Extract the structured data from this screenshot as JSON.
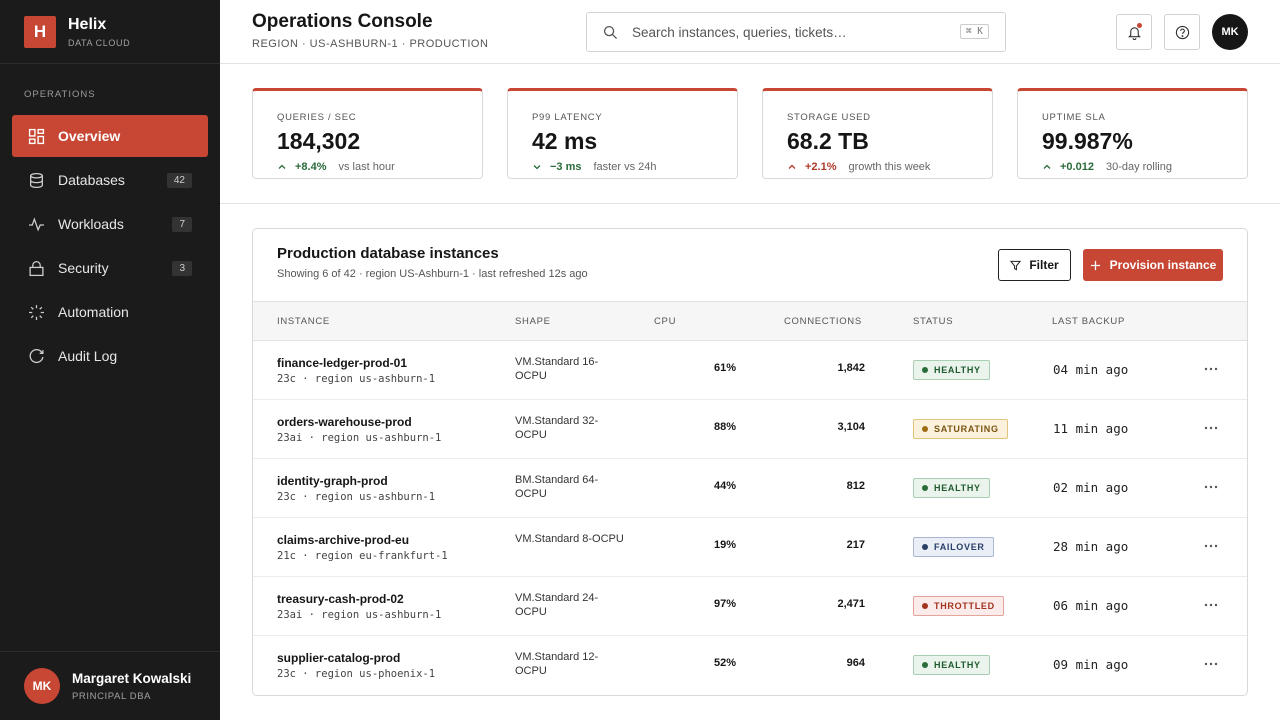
{
  "brand": {
    "logo_letter": "H",
    "name": "Helix",
    "subtitle": "DATA CLOUD"
  },
  "sidebar": {
    "section_label": "OPERATIONS",
    "items": [
      {
        "label": "Overview",
        "icon": "grid-icon",
        "badge": "",
        "active": true
      },
      {
        "label": "Databases",
        "icon": "database-icon",
        "badge": "42"
      },
      {
        "label": "Workloads",
        "icon": "pulse-icon",
        "badge": "7"
      },
      {
        "label": "Security",
        "icon": "lock-icon",
        "badge": "3"
      },
      {
        "label": "Automation",
        "icon": "spark-icon",
        "badge": ""
      },
      {
        "label": "Audit Log",
        "icon": "history-icon",
        "badge": ""
      }
    ],
    "user": {
      "initials": "MK",
      "name": "Margaret Kowalski",
      "role": "PRINCIPAL DBA"
    }
  },
  "header": {
    "title": "Operations Console",
    "subtitle": "REGION · US-ASHBURN-1 · PRODUCTION",
    "search_placeholder": "Search instances, queries, tickets…",
    "search_shortcut": "⌘ K",
    "avatar_initials": "MK"
  },
  "kpis": [
    {
      "label": "QUERIES / SEC",
      "value": "184,302",
      "delta": "+8.4%",
      "direction": "up",
      "tone": "good",
      "note": "vs last hour"
    },
    {
      "label": "P99 LATENCY",
      "value": "42 ms",
      "delta": "−3 ms",
      "direction": "down",
      "tone": "good",
      "note": "faster vs 24h"
    },
    {
      "label": "STORAGE USED",
      "value": "68.2 TB",
      "delta": "+2.1%",
      "direction": "up",
      "tone": "bad",
      "note": "growth this week"
    },
    {
      "label": "UPTIME SLA",
      "value": "99.987%",
      "delta": "+0.012",
      "direction": "up",
      "tone": "good",
      "note": "30-day rolling"
    }
  ],
  "table": {
    "title": "Production database instances",
    "subtitle": "Showing 6 of 42 · region US-Ashburn-1 · last refreshed 12s ago",
    "filter_label": "Filter",
    "provision_label": "Provision instance",
    "columns": [
      "INSTANCE",
      "SHAPE",
      "CPU",
      "CONNECTIONS",
      "STATUS",
      "LAST BACKUP"
    ],
    "rows": [
      {
        "name": "finance-ledger-prod-01",
        "meta": "23c · region us-ashburn-1",
        "shape": "VM.Standard 16-OCPU",
        "cpu": "61%",
        "connections": "1,842",
        "status": "HEALTHY",
        "status_kind": "healthy",
        "backup": "04 min ago"
      },
      {
        "name": "orders-warehouse-prod",
        "meta": "23ai · region us-ashburn-1",
        "shape": "VM.Standard 32-OCPU",
        "cpu": "88%",
        "connections": "3,104",
        "status": "SATURATING",
        "status_kind": "saturating",
        "backup": "11 min ago"
      },
      {
        "name": "identity-graph-prod",
        "meta": "23c · region us-ashburn-1",
        "shape": "BM.Standard 64-OCPU",
        "cpu": "44%",
        "connections": "812",
        "status": "HEALTHY",
        "status_kind": "healthy",
        "backup": "02 min ago"
      },
      {
        "name": "claims-archive-prod-eu",
        "meta": "21c · region eu-frankfurt-1",
        "shape": "VM.Standard 8-OCPU",
        "cpu": "19%",
        "connections": "217",
        "status": "FAILOVER",
        "status_kind": "failover",
        "backup": "28 min ago"
      },
      {
        "name": "treasury-cash-prod-02",
        "meta": "23ai · region us-ashburn-1",
        "shape": "VM.Standard 24-OCPU",
        "cpu": "97%",
        "connections": "2,471",
        "status": "THROTTLED",
        "status_kind": "throttled",
        "backup": "06 min ago"
      },
      {
        "name": "supplier-catalog-prod",
        "meta": "23c · region us-phoenix-1",
        "shape": "VM.Standard 12-OCPU",
        "cpu": "52%",
        "connections": "964",
        "status": "HEALTHY",
        "status_kind": "healthy",
        "backup": "09 min ago"
      }
    ]
  },
  "colors": {
    "accent": "#c74634",
    "sidebar_bg": "#1b1b1b",
    "good": "#2a6b3a",
    "bad": "#b3382a"
  }
}
